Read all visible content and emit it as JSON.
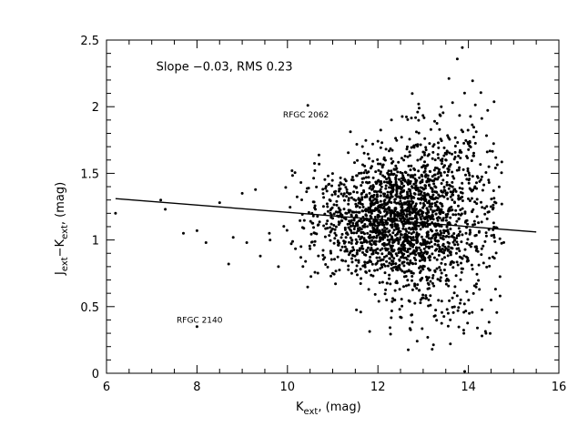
{
  "chart_data": {
    "type": "scatter",
    "xlim": [
      6,
      16
    ],
    "ylim": [
      0,
      2.5
    ],
    "x_ticks": [
      "6",
      "8",
      "10",
      "12",
      "14",
      "16"
    ],
    "y_ticks": [
      "0",
      "0.5",
      "1",
      "1.5",
      "2",
      "2.5"
    ],
    "xlabel": {
      "main": "K",
      "sub": "ext",
      "rest": ", (mag)"
    },
    "ylabel": {
      "m1": "J",
      "s1": "ext",
      "mid": "−K",
      "s2": "ext",
      "rest": ", (mag)"
    },
    "annotation": "Slope  −0.03,  RMS  0.23",
    "fit_line": {
      "x": [
        6.2,
        15.5
      ],
      "y": [
        1.31,
        1.06
      ]
    },
    "labeled_points": [
      {
        "label": "RFGC  2062",
        "x": 10.45,
        "y": 2.01,
        "label_x": 9.9,
        "label_y": 1.92
      },
      {
        "label": "RFGC  2140",
        "x": 8.0,
        "y": 0.35,
        "label_x": 7.55,
        "label_y": 0.38
      }
    ],
    "point_cloud": {
      "note": "dense scatter of galaxies; approx. distribution",
      "count": 2200,
      "center": [
        12.6,
        1.15
      ],
      "spread": [
        0.95,
        0.22
      ]
    },
    "extra_points": [
      [
        6.2,
        1.2
      ],
      [
        7.2,
        1.3
      ],
      [
        7.3,
        1.23
      ],
      [
        7.7,
        1.05
      ],
      [
        8.0,
        1.07
      ],
      [
        8.2,
        0.98
      ],
      [
        8.5,
        1.28
      ],
      [
        8.7,
        0.82
      ],
      [
        8.8,
        1.02
      ],
      [
        9.1,
        0.98
      ],
      [
        9.0,
        1.35
      ],
      [
        9.4,
        0.88
      ],
      [
        9.6,
        1.05
      ],
      [
        9.8,
        0.8
      ],
      [
        10.1,
        1.52
      ],
      [
        10.3,
        0.95
      ],
      [
        10.7,
        1.57
      ],
      [
        10.9,
        1.48
      ],
      [
        11.0,
        0.75
      ],
      [
        14.7,
        0.58
      ],
      [
        14.5,
        0.55
      ],
      [
        14.3,
        0.28
      ],
      [
        14.2,
        0.34
      ],
      [
        13.9,
        0.3
      ],
      [
        13.6,
        0.4
      ],
      [
        13.2,
        0.18
      ],
      [
        13.1,
        0.27
      ],
      [
        13.4,
        2.0
      ],
      [
        12.9,
        2.02
      ],
      [
        12.3,
        1.9
      ]
    ]
  }
}
